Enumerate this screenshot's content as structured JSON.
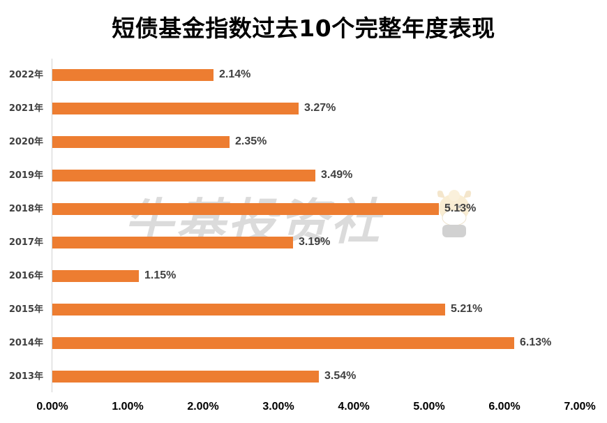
{
  "title": "短债基金指数过去10个完整年度表现",
  "watermark": "牛基投资社",
  "colors": {
    "bar": "#ed7d31",
    "axis_line": "#d0d0d0",
    "label_text": "#404040"
  },
  "rows": [
    {
      "year": "2022年",
      "value": 2.14,
      "label": "2.14%"
    },
    {
      "year": "2021年",
      "value": 3.27,
      "label": "3.27%"
    },
    {
      "year": "2020年",
      "value": 2.35,
      "label": "2.35%"
    },
    {
      "year": "2019年",
      "value": 3.49,
      "label": "3.49%"
    },
    {
      "year": "2018年",
      "value": 5.13,
      "label": "5.13%"
    },
    {
      "year": "2017年",
      "value": 3.19,
      "label": "3.19%"
    },
    {
      "year": "2016年",
      "value": 1.15,
      "label": "1.15%"
    },
    {
      "year": "2015年",
      "value": 5.21,
      "label": "5.21%"
    },
    {
      "year": "2014年",
      "value": 6.13,
      "label": "6.13%"
    },
    {
      "year": "2013年",
      "value": 3.54,
      "label": "3.54%"
    }
  ],
  "x_ticks": [
    "0.00%",
    "1.00%",
    "2.00%",
    "3.00%",
    "4.00%",
    "5.00%",
    "6.00%",
    "7.00%"
  ],
  "chart_data": {
    "type": "bar",
    "orientation": "horizontal",
    "title": "短债基金指数过去10个完整年度表现",
    "categories": [
      "2022年",
      "2021年",
      "2020年",
      "2019年",
      "2018年",
      "2017年",
      "2016年",
      "2015年",
      "2014年",
      "2013年"
    ],
    "values": [
      2.14,
      3.27,
      2.35,
      3.49,
      5.13,
      3.19,
      1.15,
      5.21,
      6.13,
      3.54
    ],
    "value_labels": [
      "2.14%",
      "3.27%",
      "2.35%",
      "3.49%",
      "5.13%",
      "3.19%",
      "1.15%",
      "5.21%",
      "6.13%",
      "3.54%"
    ],
    "xlabel": "",
    "ylabel": "",
    "xlim": [
      0,
      7
    ],
    "x_tick_labels": [
      "0.00%",
      "1.00%",
      "2.00%",
      "3.00%",
      "4.00%",
      "5.00%",
      "6.00%",
      "7.00%"
    ],
    "grid": false,
    "legend": null,
    "series_color": "#ed7d31"
  }
}
